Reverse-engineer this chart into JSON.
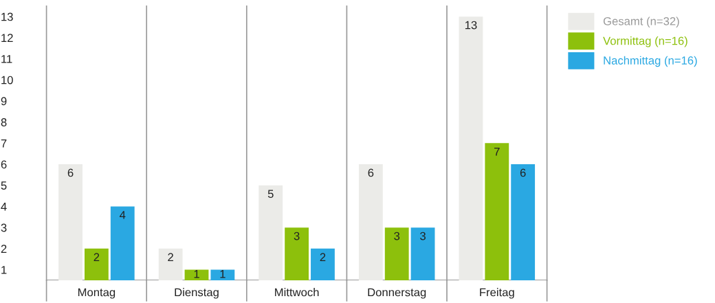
{
  "chart_data": {
    "type": "bar",
    "categories": [
      "Montag",
      "Dienstag",
      "Mittwoch",
      "Donnerstag",
      "Freitag"
    ],
    "series": [
      {
        "name": "Gesamt (n=32)",
        "color": "#ebebe8",
        "values": [
          6,
          2,
          5,
          6,
          13
        ]
      },
      {
        "name": "Vormittag (n=16)",
        "color": "#8dc00c",
        "values": [
          2,
          1,
          3,
          3,
          7
        ]
      },
      {
        "name": "Nachmittag (n=16)",
        "color": "#2aa8e2",
        "values": [
          4,
          1,
          2,
          3,
          6
        ]
      }
    ],
    "ylim": [
      0.5,
      13.5
    ],
    "yticks": [
      1,
      2,
      3,
      4,
      5,
      6,
      7,
      8,
      9,
      10,
      11,
      12,
      13
    ],
    "legend": "top right",
    "data_labels": true
  }
}
